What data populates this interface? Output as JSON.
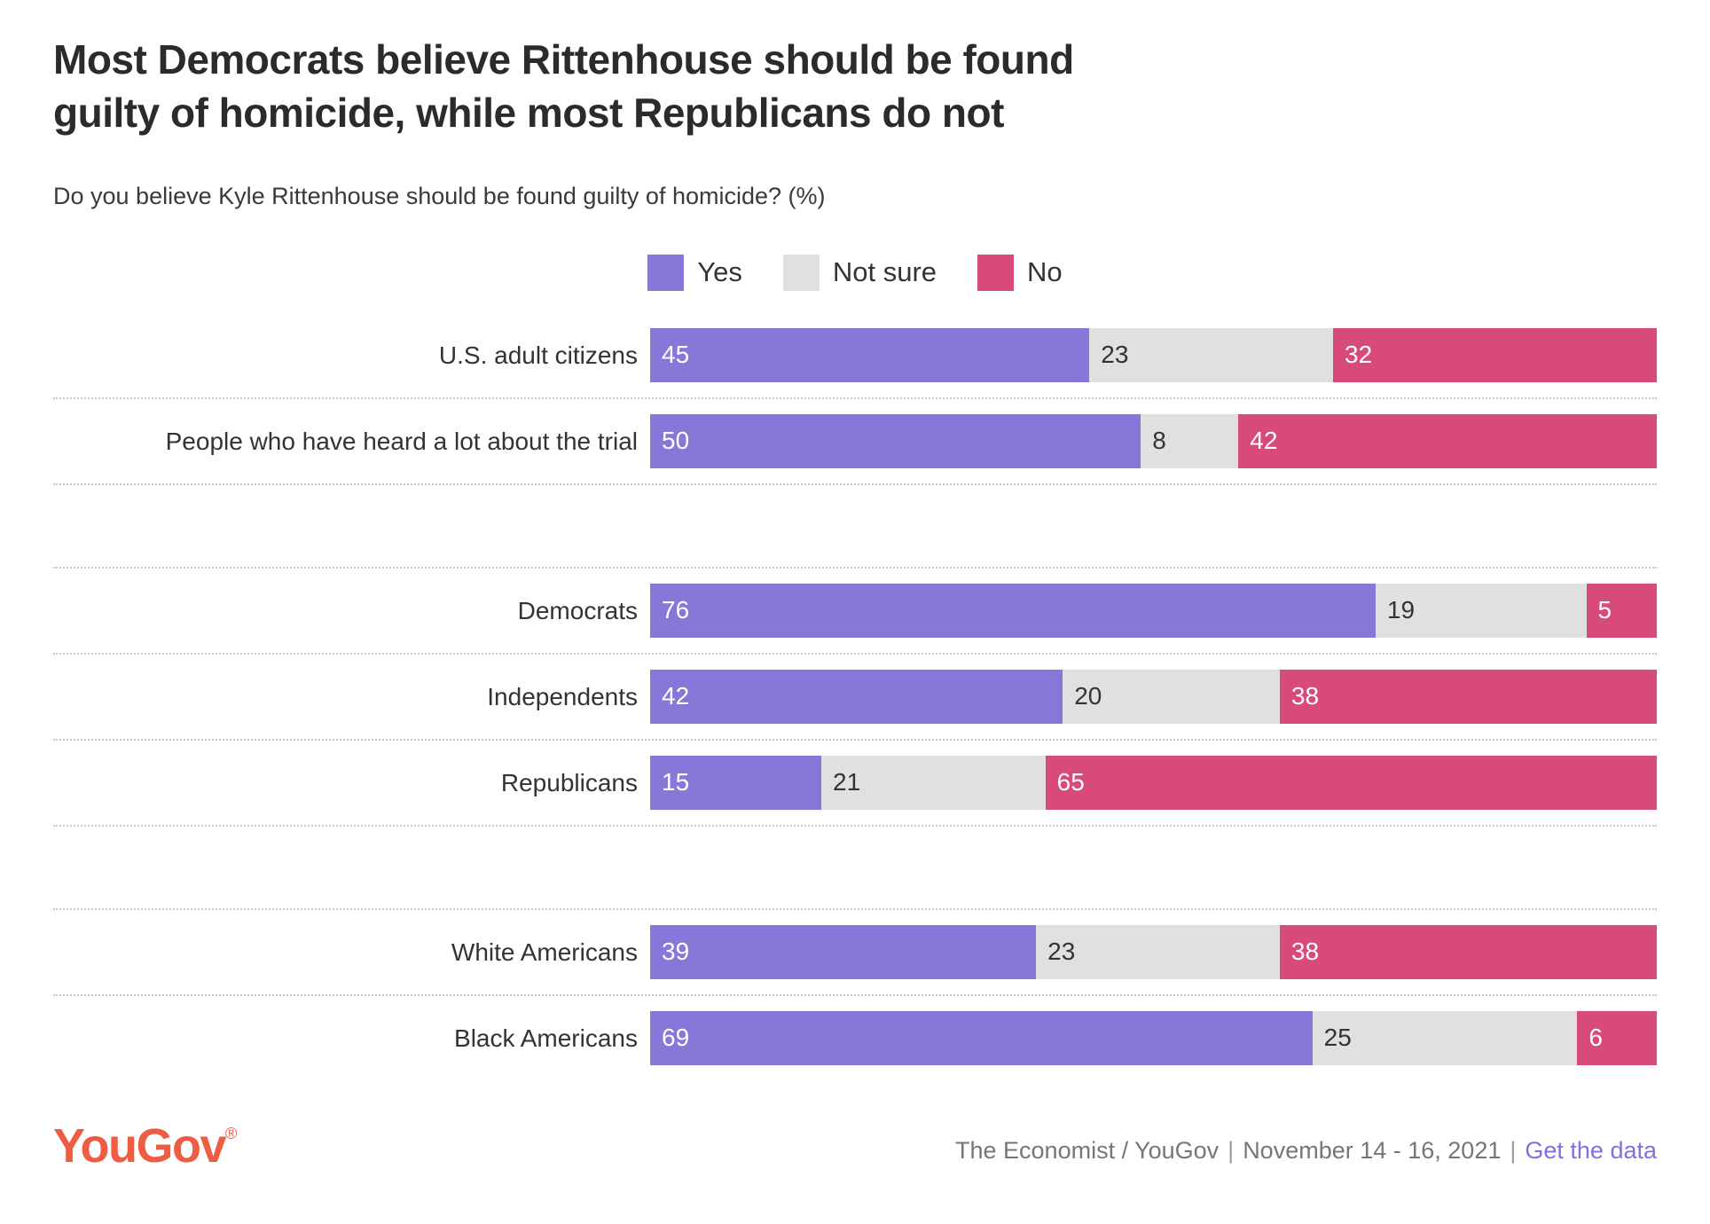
{
  "header": {
    "title_lines": [
      "Most Democrats believe Rittenhouse should be found",
      "guilty of homicide, while most Republicans do not"
    ],
    "subtitle": "Do you believe Kyle Rittenhouse should be found guilty of homicide? (%)"
  },
  "legend": [
    {
      "label": "Yes",
      "color": "#8678d9"
    },
    {
      "label": "Not sure",
      "color": "#e0e0e0"
    },
    {
      "label": "No",
      "color": "#d8497c"
    }
  ],
  "chart_data": {
    "type": "bar",
    "orientation": "horizontal",
    "stacked": true,
    "unit": "%",
    "xlim": [
      0,
      100
    ],
    "grid": false,
    "legend_position": "top-center",
    "categories": [
      "U.S. adult citizens",
      "People who have heard a lot about the trial",
      "Democrats",
      "Independents",
      "Republicans",
      "White Americans",
      "Black Americans"
    ],
    "series": [
      {
        "name": "Yes",
        "color": "#8678d9",
        "values": [
          45,
          50,
          76,
          42,
          15,
          39,
          69
        ]
      },
      {
        "name": "Not sure",
        "color": "#e0e0e0",
        "values": [
          23,
          8,
          19,
          20,
          21,
          23,
          25
        ]
      },
      {
        "name": "No",
        "color": "#d8497c",
        "values": [
          32,
          42,
          5,
          38,
          65,
          38,
          6
        ]
      }
    ],
    "rows": [
      {
        "label": "U.S. adult citizens",
        "yes": 45,
        "not_sure": 23,
        "no": 32
      },
      {
        "label": "People who have heard a lot about the trial",
        "yes": 50,
        "not_sure": 8,
        "no": 42
      },
      {
        "label": "Democrats",
        "yes": 76,
        "not_sure": 19,
        "no": 5
      },
      {
        "label": "Independents",
        "yes": 42,
        "not_sure": 20,
        "no": 38
      },
      {
        "label": "Republicans",
        "yes": 15,
        "not_sure": 21,
        "no": 65
      },
      {
        "label": "White Americans",
        "yes": 39,
        "not_sure": 23,
        "no": 38
      },
      {
        "label": "Black Americans",
        "yes": 69,
        "not_sure": 25,
        "no": 6
      }
    ],
    "groups": [
      [
        0,
        1
      ],
      [
        2,
        3,
        4
      ],
      [
        5,
        6
      ]
    ]
  },
  "footer": {
    "logo": "YouGov",
    "logo_mark": "®",
    "source": "The Economist / YouGov",
    "date_range": "November 14 - 16, 2021",
    "pipe": "|",
    "link": "Get the data"
  }
}
